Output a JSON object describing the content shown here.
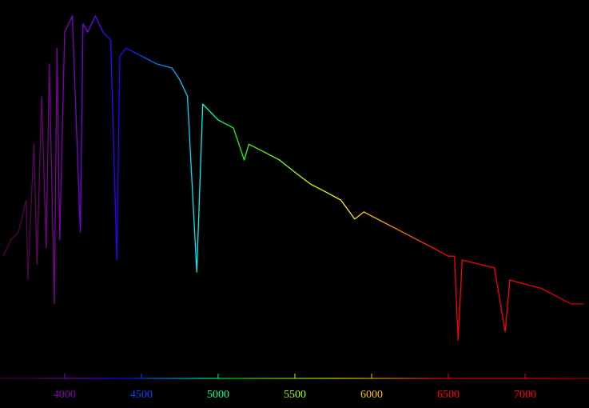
{
  "chart_data": {
    "type": "line",
    "x": [
      3600,
      3650,
      3700,
      3750,
      3760,
      3800,
      3820,
      3850,
      3880,
      3900,
      3933,
      3950,
      3968,
      4000,
      4050,
      4102,
      4120,
      4150,
      4200,
      4250,
      4300,
      4340,
      4360,
      4400,
      4500,
      4600,
      4700,
      4750,
      4800,
      4861,
      4900,
      5000,
      5100,
      5170,
      5200,
      5300,
      5400,
      5500,
      5600,
      5700,
      5800,
      5890,
      5950,
      6000,
      6100,
      6200,
      6300,
      6400,
      6500,
      6540,
      6563,
      6590,
      6700,
      6800,
      6870,
      6900,
      7000,
      7100,
      7200,
      7300,
      7380
    ],
    "values": [
      32.3,
      36.6,
      38.7,
      47.1,
      26.0,
      62.0,
      30.2,
      74.6,
      34.5,
      83.1,
      19.7,
      87.3,
      36.6,
      91.5,
      95.8,
      38.7,
      93.7,
      91.5,
      95.8,
      91.5,
      89.4,
      31.3,
      85.2,
      87.3,
      85.2,
      83.1,
      82.0,
      78.9,
      74.6,
      28.1,
      72.5,
      68.3,
      66.2,
      57.7,
      61.9,
      59.8,
      57.7,
      54.5,
      51.4,
      49.3,
      47.1,
      42.1,
      44.0,
      42.9,
      40.8,
      38.7,
      36.6,
      34.5,
      32.3,
      32.3,
      10.1,
      31.3,
      30.2,
      29.2,
      12.3,
      26.0,
      24.9,
      23.9,
      21.8,
      19.7,
      19.7
    ],
    "xlim": [
      3579,
      7416
    ],
    "ylim": [
      0,
      100
    ],
    "xticks": [
      4000,
      4500,
      5000,
      5500,
      6000,
      6500,
      7000
    ]
  }
}
